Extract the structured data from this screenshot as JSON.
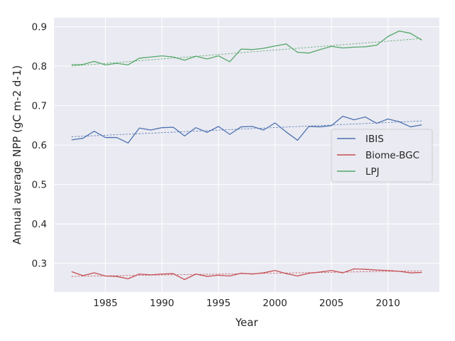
{
  "chart_data": {
    "type": "line",
    "title": "",
    "xlabel": "Year",
    "ylabel": "Annual average NPP (gC m-2 d-1)",
    "xlim": [
      1980.45,
      2014.55
    ],
    "ylim": [
      0.2275,
      0.9225
    ],
    "xticks": [
      1985,
      1990,
      1995,
      2000,
      2005,
      2010
    ],
    "xtick_labels": [
      "1985",
      "1990",
      "1995",
      "2000",
      "2005",
      "2010"
    ],
    "yticks": [
      0.3,
      0.4,
      0.5,
      0.6,
      0.7,
      0.8,
      0.9
    ],
    "ytick_labels": [
      "0.3",
      "0.4",
      "0.5",
      "0.6",
      "0.7",
      "0.8",
      "0.9"
    ],
    "grid": true,
    "legend_position": "center-right",
    "x": [
      1982,
      1983,
      1984,
      1985,
      1986,
      1987,
      1988,
      1989,
      1990,
      1991,
      1992,
      1993,
      1994,
      1995,
      1996,
      1997,
      1998,
      1999,
      2000,
      2001,
      2002,
      2003,
      2004,
      2005,
      2006,
      2007,
      2008,
      2009,
      2010,
      2011,
      2012,
      2013
    ],
    "series": [
      {
        "name": "IBIS",
        "color": "#4c72b0",
        "values": [
          0.613,
          0.617,
          0.635,
          0.619,
          0.619,
          0.605,
          0.643,
          0.638,
          0.644,
          0.645,
          0.623,
          0.644,
          0.632,
          0.647,
          0.627,
          0.646,
          0.647,
          0.638,
          0.656,
          0.633,
          0.612,
          0.647,
          0.646,
          0.649,
          0.673,
          0.664,
          0.671,
          0.655,
          0.666,
          0.659,
          0.646,
          0.651
        ],
        "trend": [
          0.621,
          0.661
        ]
      },
      {
        "name": "Biome-BGC",
        "color": "#c44e52",
        "values": [
          0.279,
          0.269,
          0.276,
          0.268,
          0.267,
          0.261,
          0.273,
          0.271,
          0.273,
          0.274,
          0.259,
          0.273,
          0.267,
          0.27,
          0.268,
          0.275,
          0.273,
          0.276,
          0.282,
          0.274,
          0.268,
          0.275,
          0.278,
          0.282,
          0.276,
          0.286,
          0.285,
          0.283,
          0.282,
          0.28,
          0.276,
          0.277
        ],
        "trend": [
          0.267,
          0.281
        ]
      },
      {
        "name": "LPJ",
        "color": "#55a868",
        "values": [
          0.803,
          0.804,
          0.812,
          0.803,
          0.807,
          0.803,
          0.82,
          0.823,
          0.826,
          0.823,
          0.815,
          0.825,
          0.818,
          0.826,
          0.811,
          0.843,
          0.842,
          0.845,
          0.851,
          0.856,
          0.835,
          0.833,
          0.842,
          0.85,
          0.846,
          0.848,
          0.849,
          0.853,
          0.875,
          0.889,
          0.883,
          0.866
        ],
        "trend": [
          0.8,
          0.87
        ]
      }
    ]
  }
}
